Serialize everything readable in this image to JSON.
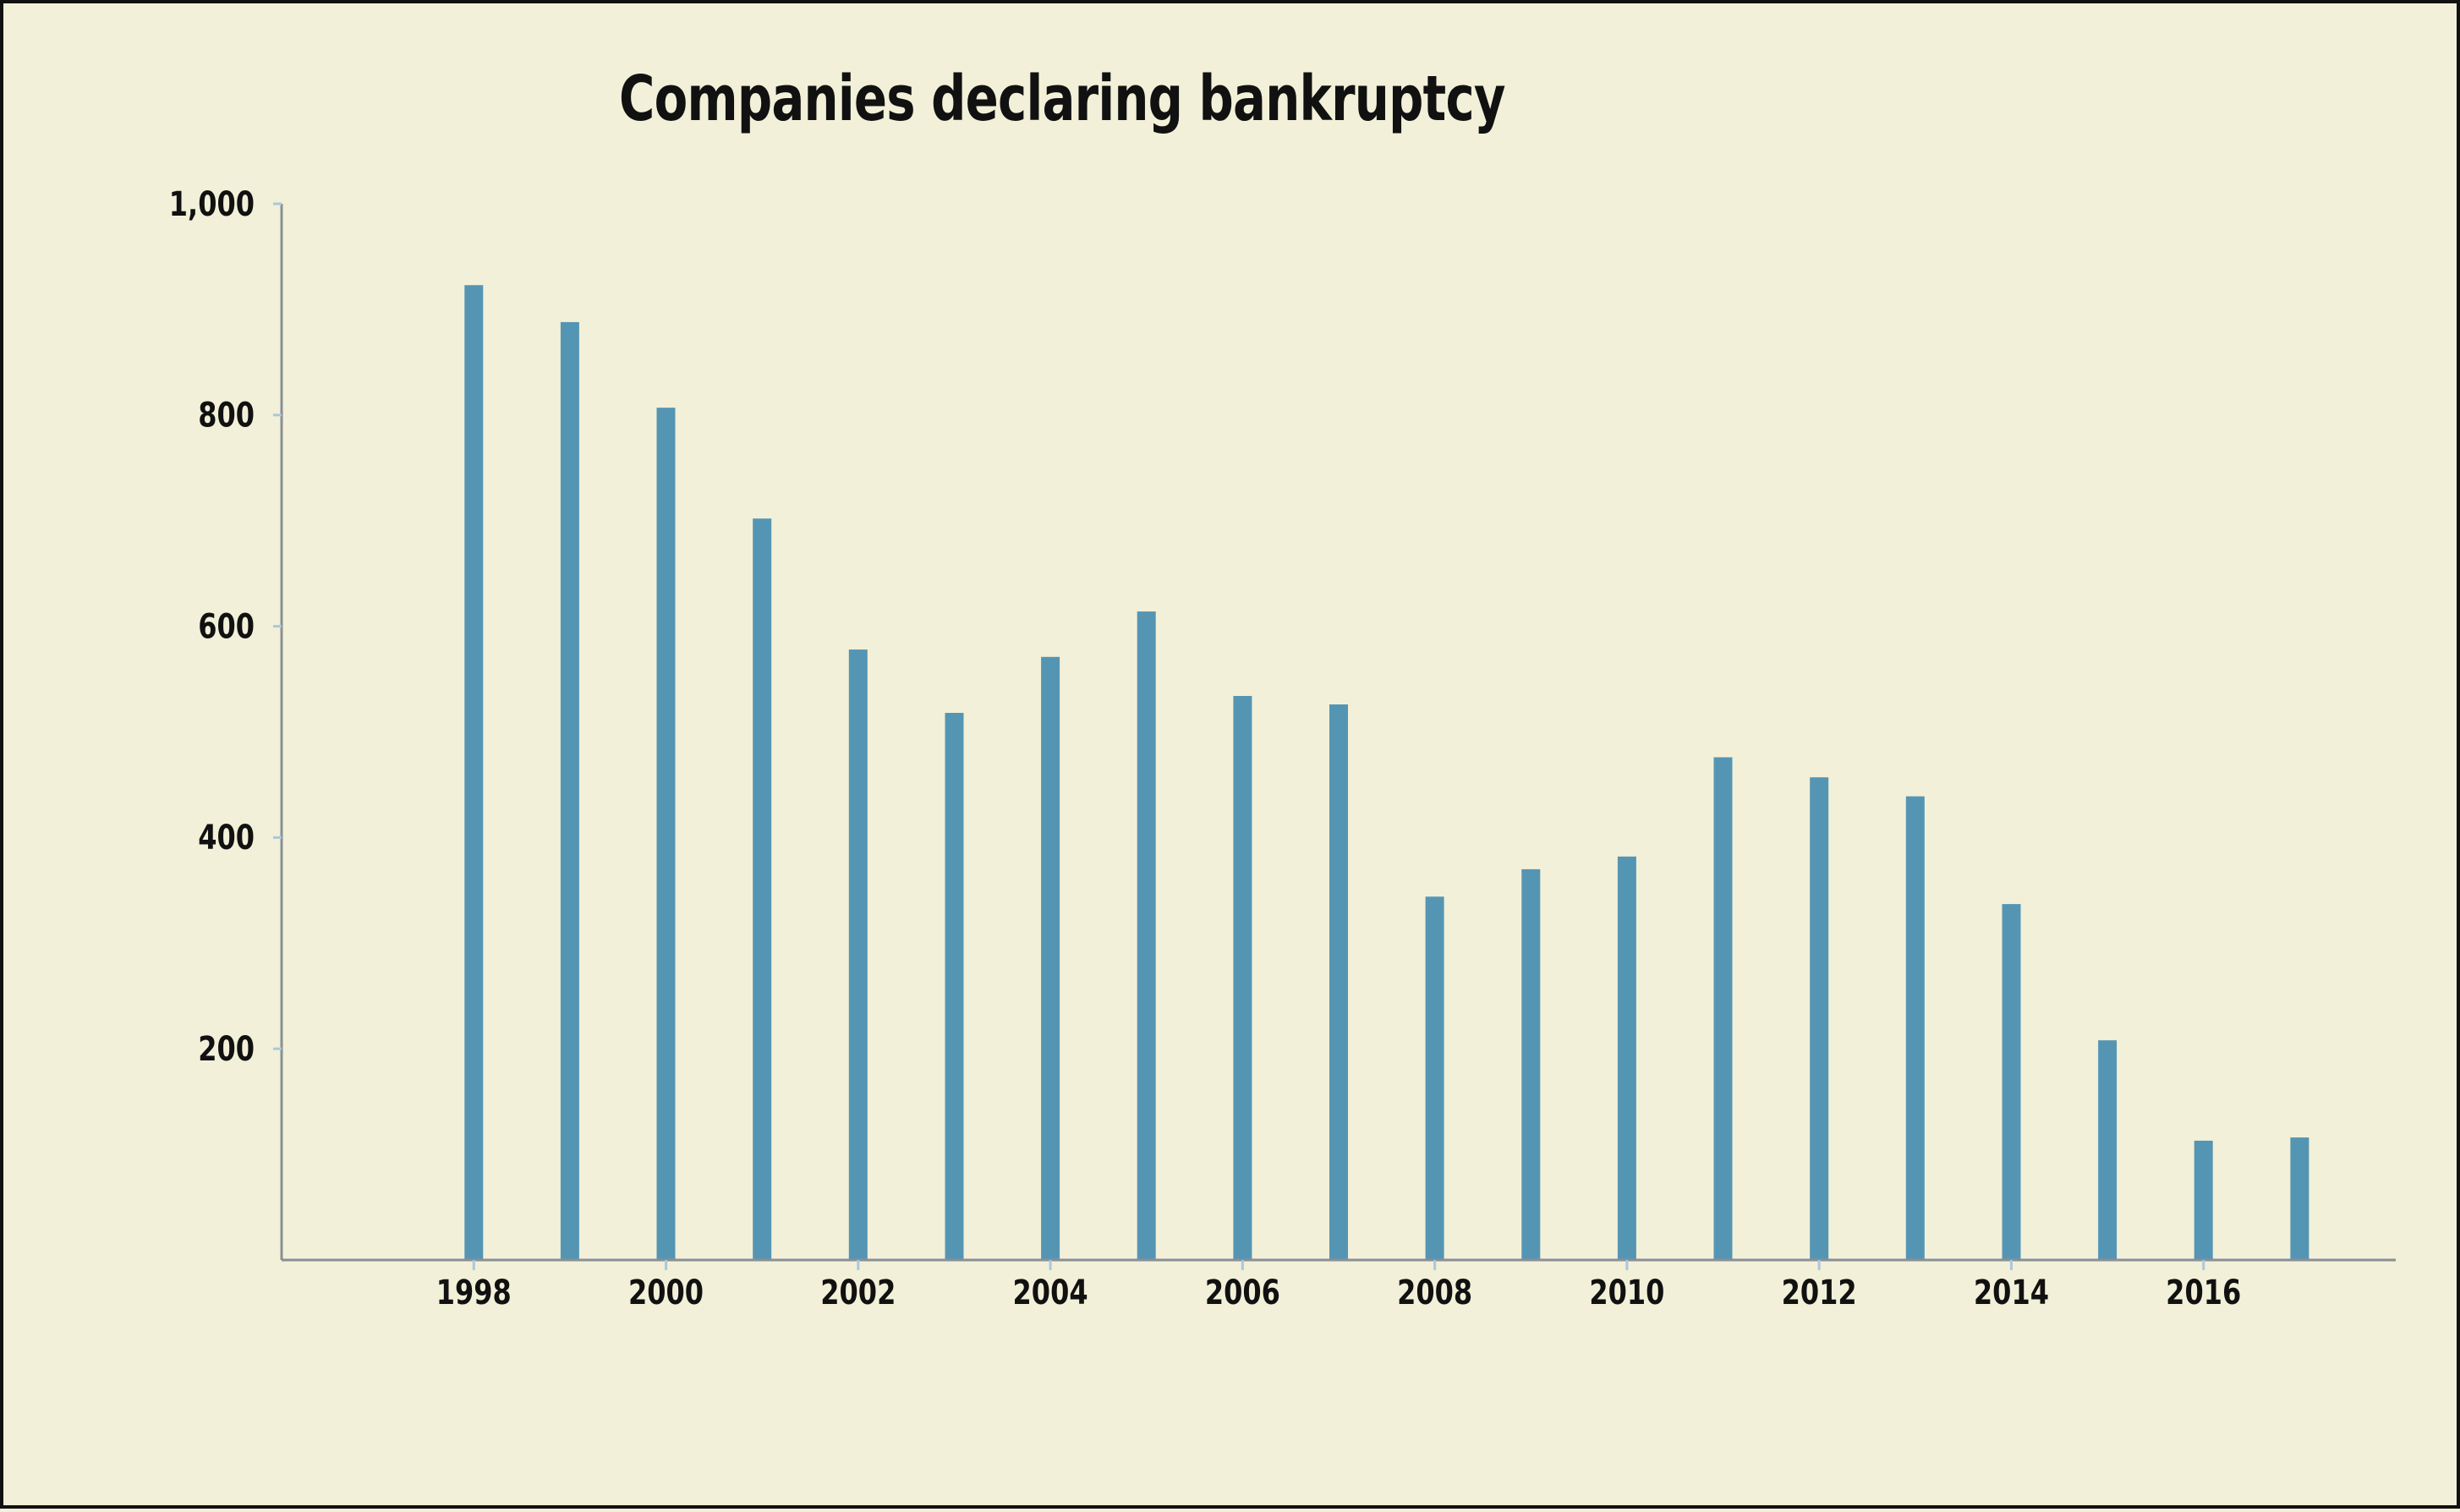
{
  "chart_data": {
    "type": "bar",
    "title": "Companies declaring bankruptcy",
    "xlabel": "",
    "ylabel": "",
    "categories": [
      "1998",
      "1999",
      "2000",
      "2001",
      "2002",
      "2003",
      "2004",
      "2005",
      "2006",
      "2007",
      "2008",
      "2009",
      "2010",
      "2011",
      "2012",
      "2013",
      "2014",
      "2015",
      "2016",
      "2017"
    ],
    "values": [
      923,
      888,
      807,
      702,
      578,
      518,
      571,
      614,
      534,
      526,
      344,
      370,
      382,
      476,
      457,
      439,
      337,
      208,
      113,
      116
    ],
    "x_tick_labels": [
      "1998",
      "2000",
      "2002",
      "2004",
      "2006",
      "2008",
      "2010",
      "2012",
      "2014",
      "2016"
    ],
    "y_tick_labels": [
      "200",
      "400",
      "600",
      "800",
      "1,000"
    ],
    "y_ticks": [
      200,
      400,
      600,
      800,
      1000
    ],
    "ylim": [
      0,
      1000
    ],
    "xlim": [
      1996,
      2018
    ],
    "grid": false,
    "colors": {
      "bar": "#5595b4",
      "axis": "#8a8f96",
      "tick": "#a9c9dc",
      "background": "#f2f0d8",
      "text": "#111111"
    }
  }
}
